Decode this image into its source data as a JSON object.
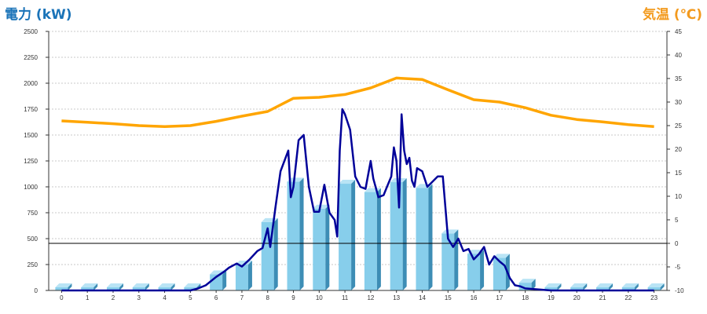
{
  "chart_data": {
    "type": "bar",
    "title_left": "電力 (kW)",
    "title_right": "気温 (℃)",
    "categories": [
      "0",
      "1",
      "2",
      "3",
      "4",
      "5",
      "6",
      "7",
      "8",
      "9",
      "10",
      "11",
      "12",
      "13",
      "14",
      "15",
      "16",
      "17",
      "18",
      "19",
      "20",
      "21",
      "22",
      "23"
    ],
    "y_left": {
      "ylim": [
        0,
        2500
      ],
      "ticks": [
        "0",
        "250",
        "500",
        "750",
        "1000",
        "1250",
        "1500",
        "1750",
        "2000",
        "2250",
        "2500"
      ]
    },
    "y_right": {
      "ylim": [
        -10,
        45
      ],
      "ticks": [
        "-10",
        "-5",
        "0",
        "5",
        "10",
        "15",
        "20",
        "25",
        "30",
        "35",
        "40",
        "45"
      ]
    },
    "grid": true,
    "series": [
      {
        "kind": "bar",
        "axis": "left",
        "color": "#87ceeb",
        "values": [
          30,
          30,
          30,
          30,
          30,
          30,
          155,
          250,
          660,
          1050,
          790,
          1030,
          950,
          1045,
          990,
          550,
          355,
          315,
          75,
          30,
          30,
          30,
          30,
          30
        ]
      },
      {
        "kind": "line",
        "axis": "left",
        "color": "#000099",
        "x": [
          0,
          5,
          5.3,
          5.6,
          6,
          6.3,
          6.5,
          6.8,
          7,
          7.3,
          7.6,
          7.8,
          8,
          8.1,
          8.3,
          8.5,
          8.8,
          8.9,
          9,
          9.2,
          9.4,
          9.6,
          9.8,
          10,
          10.2,
          10.4,
          10.6,
          10.7,
          10.8,
          10.9,
          11,
          11.2,
          11.4,
          11.6,
          11.8,
          12,
          12.1,
          12.3,
          12.5,
          12.7,
          12.8,
          12.9,
          13,
          13.1,
          13.2,
          13.3,
          13.4,
          13.5,
          13.6,
          13.7,
          13.8,
          14,
          14.2,
          14.4,
          14.6,
          14.8,
          15,
          15.2,
          15.4,
          15.6,
          15.8,
          16,
          16.2,
          16.4,
          16.6,
          16.8,
          17,
          17.2,
          17.4,
          17.6,
          17.8,
          18,
          19,
          20,
          21,
          22,
          23
        ],
        "values": [
          0,
          0,
          20,
          50,
          130,
          180,
          220,
          260,
          230,
          300,
          380,
          410,
          600,
          420,
          800,
          1150,
          1350,
          900,
          1000,
          1450,
          1500,
          1000,
          760,
          760,
          1020,
          750,
          680,
          520,
          1350,
          1750,
          1700,
          1550,
          1100,
          1000,
          980,
          1250,
          1080,
          900,
          920,
          1040,
          1100,
          1380,
          1250,
          800,
          1700,
          1350,
          1220,
          1280,
          1060,
          1000,
          1180,
          1150,
          1000,
          1050,
          1100,
          1100,
          500,
          420,
          500,
          380,
          400,
          300,
          350,
          420,
          250,
          330,
          280,
          240,
          120,
          50,
          40,
          20,
          0,
          0,
          0,
          0,
          0
        ]
      },
      {
        "kind": "line",
        "axis": "right",
        "color": "#ffa500",
        "x": [
          0,
          1,
          2,
          3,
          4,
          5,
          6,
          7,
          8,
          9,
          10,
          11,
          12,
          13,
          14,
          15,
          16,
          17,
          18,
          19,
          20,
          21,
          22,
          23
        ],
        "values": [
          26,
          25.7,
          25.4,
          25,
          24.8,
          25,
          25.9,
          27,
          28,
          30.8,
          31,
          31.6,
          33,
          35.1,
          34.8,
          32.6,
          30.5,
          30,
          28.8,
          27.2,
          26.3,
          25.8,
          25.2,
          24.8
        ]
      }
    ],
    "zero_line_value_right": 0
  }
}
